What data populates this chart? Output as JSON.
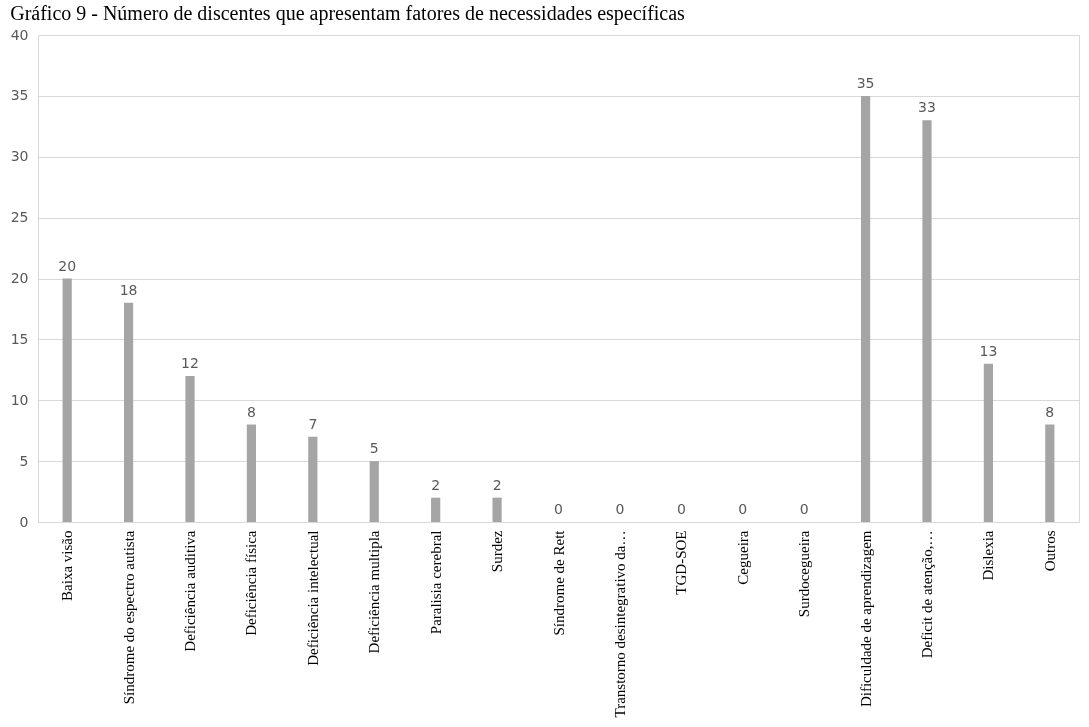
{
  "chart_data": {
    "type": "bar",
    "title": "Gráfico 9 - Número de discentes que apresentam fatores de necessidades específicas",
    "categories": [
      "Baixa visão",
      "Síndrome do espectro autista",
      "Deficiência auditiva",
      "Deficiência física",
      "Deficiência intelectual",
      "Deficiência multipla",
      "Paralisia cerebral",
      "Surdez",
      "Síndrome de Rett",
      "Transtorno desintegrativo da…",
      "TGD-SOE",
      "Cegueira",
      "Surdocegueira",
      "Dificuldade de aprendizagem",
      "Deficit de atenção,…",
      "Dislexia",
      "Outros"
    ],
    "values": [
      20,
      18,
      12,
      8,
      7,
      5,
      2,
      2,
      0,
      0,
      0,
      0,
      0,
      35,
      33,
      13,
      8
    ],
    "color": "#a5a5a5",
    "ylim": [
      0,
      40
    ],
    "yticks": [
      0,
      5,
      10,
      15,
      20,
      25,
      30,
      35,
      40
    ],
    "grid": "y",
    "data_labels": true
  }
}
